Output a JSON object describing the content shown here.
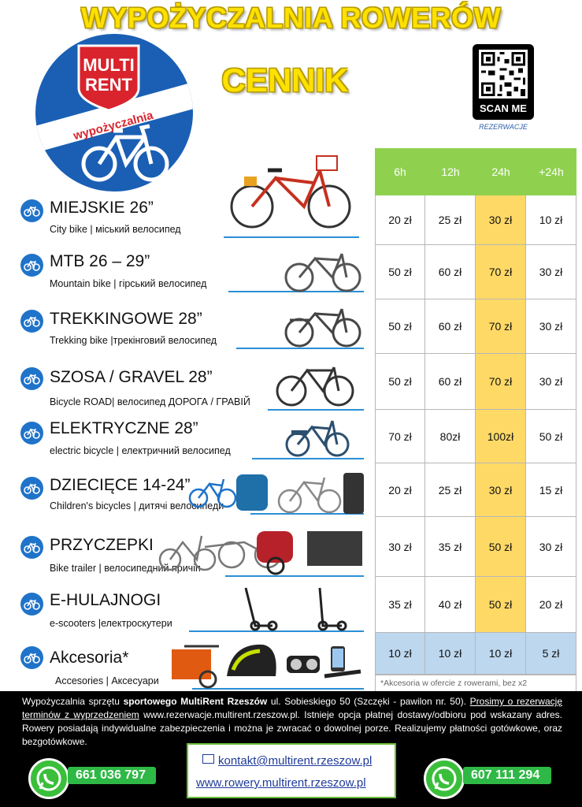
{
  "header": {
    "title": "WYPOŻYCZALNIA ROWERÓW",
    "subtitle": "CENNIK",
    "logo_line1": "MULTI",
    "logo_line2": "RENT",
    "logo_banner": "wypożyczalnia",
    "qr_label": "SCAN ME",
    "qr_caption": "REZERWACJE"
  },
  "table": {
    "columns": [
      "6h",
      "12h",
      "24h",
      "+24h"
    ],
    "rows": [
      {
        "name": "MIEJSKIE 26”",
        "desc": "City bike | міський велосипед",
        "prices": [
          "20 zł",
          "25 zł",
          "30 zł",
          "10 zł"
        ]
      },
      {
        "name": "MTB 26 – 29”",
        "desc": "Mountain bike | гірський велосипед",
        "prices": [
          "50 zł",
          "60 zł",
          "70 zł",
          "30 zł"
        ]
      },
      {
        "name": "TREKKINGOWE 28”",
        "desc": "Trekking bike |трекінговий велосипед",
        "prices": [
          "50 zł",
          "60 zł",
          "70 zł",
          "30 zł"
        ]
      },
      {
        "name": "SZOSA / GRAVEL 28”",
        "desc": "Bicycle ROAD| велосипед ДОРОГА / ГРАВІЙ",
        "prices": [
          "50 zł",
          "60 zł",
          "70 zł",
          "30 zł"
        ]
      },
      {
        "name": "ELEKTRYCZNE 28”",
        "desc": "electric bicycle | електричний велосипед",
        "prices": [
          "70 zł",
          "80zł",
          "100zł",
          "50 zł"
        ]
      },
      {
        "name": "DZIECIĘCE 14-24”",
        "desc": "Children's bicycles  | дитячі велосипеди",
        "prices": [
          "20 zł",
          "25 zł",
          "30 zł",
          "15 zł"
        ]
      },
      {
        "name": "PRZYCZEPKI",
        "desc": "Bike trailer |  велосипедний причіп",
        "prices": [
          "30 zł",
          "35 zł",
          "50 zł",
          "30 zł"
        ]
      },
      {
        "name": "E-HULAJNOGI",
        "desc": "e-scooters |електроскутери",
        "prices": [
          "35 zł",
          "40 zł",
          "50 zł",
          "20 zł"
        ]
      },
      {
        "name": "Akcesoria*",
        "desc": "Accesories | Аксесуари",
        "prices": [
          "10 zł",
          "10 zł",
          "10 zł",
          "5 zł"
        ]
      }
    ],
    "note": "*Akcesoria w ofercie z rowerami, bez x2"
  },
  "footer": {
    "text_1": "Wypożyczalnia sprzętu ",
    "text_bold": "sportowego MultiRent Rzeszów",
    "text_2": " ul. Sobieskiego 50 (Szczęki - pawilon nr. 50). ",
    "text_underline": "Prosimy o rezerwację terminów z wyprzedzeniem",
    "text_3": " www.rezerwacje.multirent.rzeszow.pl. Istnieje opcja płatnej dostawy/odbioru pod wskazany adres. Rowery posiadają indywidualne zabezpieczenia i można je zwracać o dowolnej porze. Realizujemy płatności gotówkowe, oraz bezgotówkowe.",
    "email": "kontakt@multirent.rzeszow.pl",
    "website": "www.rowery.multirent.rzeszow.pl",
    "phone_1": "661 036 797",
    "phone_2": "607 111 294"
  },
  "colors": {
    "title_yellow": "#ffe100",
    "header_green": "#8fd14f",
    "highlight_yellow": "#ffd966",
    "accessory_blue": "#bdd7ee",
    "icon_blue": "#1f73c9",
    "logo_red": "#d9232d"
  }
}
